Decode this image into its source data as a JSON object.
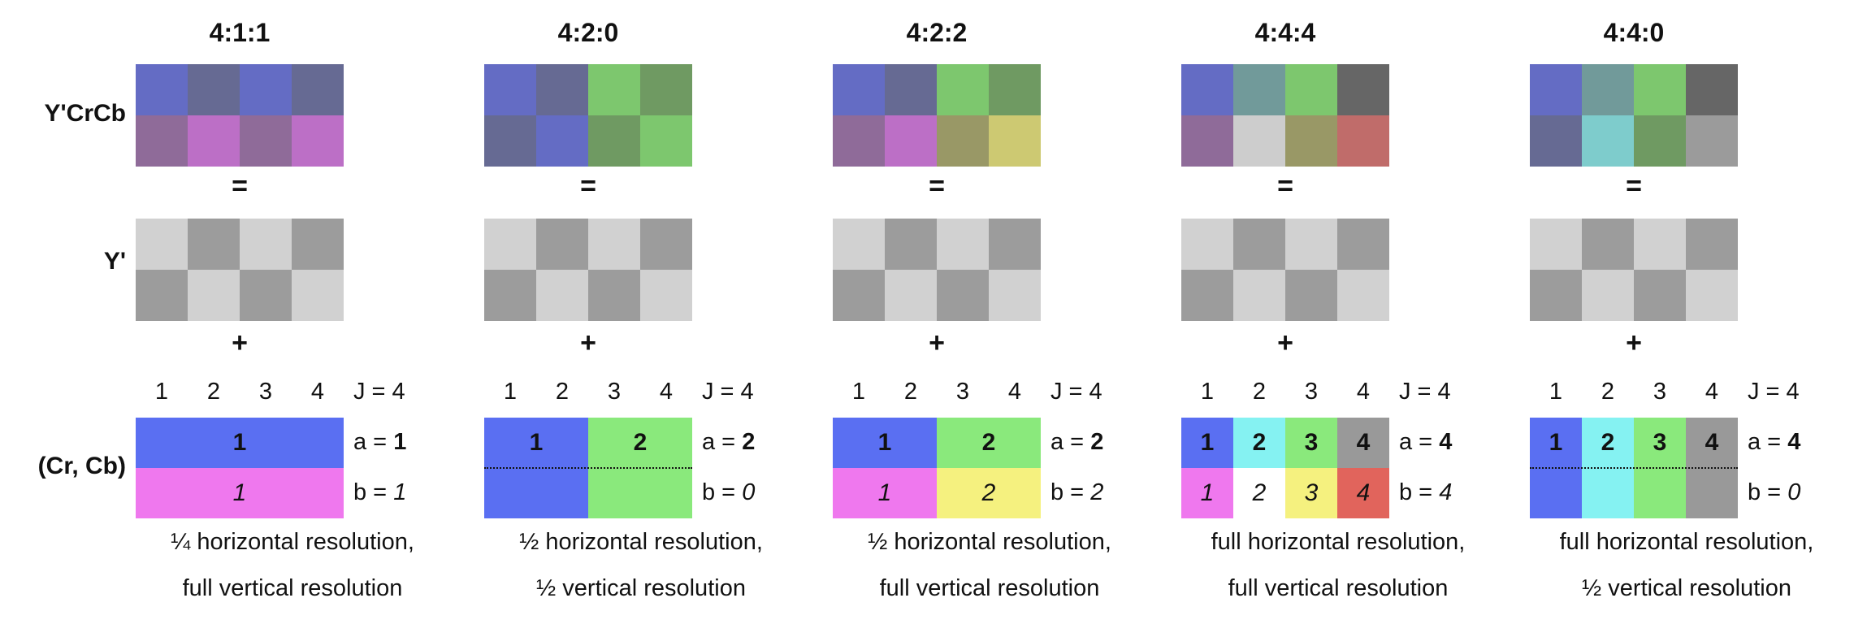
{
  "figure": {
    "row_labels": {
      "ycrcb": "Y'CrCb",
      "luma": "Y'",
      "chroma": "(Cr, Cb)"
    },
    "operators": {
      "equals": "=",
      "plus": "+"
    },
    "index_header": {
      "indices": [
        "1",
        "2",
        "3",
        "4"
      ],
      "j_label": "J = 4"
    },
    "a_prefix": "a = ",
    "b_prefix": "b = ",
    "luma_grid": [
      [
        "#d1d1d1",
        "#9c9c9c",
        "#d1d1d1",
        "#9c9c9c"
      ],
      [
        "#9c9c9c",
        "#d1d1d1",
        "#9c9c9c",
        "#d1d1d1"
      ]
    ]
  },
  "palette": {
    "chroma_blue": "#5a6ff2",
    "chroma_cyan": "#85f2f2",
    "chroma_green": "#8ae97c",
    "chroma_gray": "#999999",
    "chroma_magenta": "#ef78ee",
    "chroma_white": "#ffffff",
    "chroma_yellow": "#f5f17f",
    "chroma_red": "#e1645c",
    "luma_light": "#d1d1d1",
    "luma_dark": "#9c9c9c",
    "text": "#111111"
  },
  "columns": [
    {
      "title": "4:1:1",
      "ycrcb_grid": [
        [
          "#646cc4",
          "#666a93",
          "#646cc4",
          "#666a93"
        ],
        [
          "#8f6b99",
          "#bc6fc6",
          "#8f6b99",
          "#bc6fc6"
        ]
      ],
      "a_value": "1",
      "b_value": "1",
      "dotted_divider": false,
      "chroma_cells": [
        {
          "row": 0,
          "col": 0,
          "w": 4,
          "h": 1,
          "color": "#5a6ff2",
          "label": "1",
          "style": "bold"
        },
        {
          "row": 1,
          "col": 0,
          "w": 4,
          "h": 1,
          "color": "#ef78ee",
          "label": "1",
          "style": "italic"
        }
      ],
      "caption_line1": "¼ horizontal resolution,",
      "caption_line2": "full vertical resolution"
    },
    {
      "title": "4:2:0",
      "ycrcb_grid": [
        [
          "#646cc4",
          "#666a93",
          "#7dc76e",
          "#6f9a62"
        ],
        [
          "#666a93",
          "#646cc4",
          "#6f9a62",
          "#7dc76e"
        ]
      ],
      "a_value": "2",
      "b_value": "0",
      "dotted_divider": true,
      "chroma_cells": [
        {
          "row": 0,
          "col": 0,
          "w": 2,
          "h": 2,
          "color": "#5a6ff2",
          "label": "1",
          "style": "bold"
        },
        {
          "row": 0,
          "col": 2,
          "w": 2,
          "h": 2,
          "color": "#8ae97c",
          "label": "2",
          "style": "bold"
        }
      ],
      "caption_line1": "½ horizontal resolution,",
      "caption_line2": "½ vertical resolution"
    },
    {
      "title": "4:2:2",
      "ycrcb_grid": [
        [
          "#646cc4",
          "#666a93",
          "#7dc76e",
          "#6f9a62"
        ],
        [
          "#8f6b99",
          "#bc6fc6",
          "#999866",
          "#cdc972"
        ]
      ],
      "a_value": "2",
      "b_value": "2",
      "dotted_divider": false,
      "chroma_cells": [
        {
          "row": 0,
          "col": 0,
          "w": 2,
          "h": 1,
          "color": "#5a6ff2",
          "label": "1",
          "style": "bold"
        },
        {
          "row": 0,
          "col": 2,
          "w": 2,
          "h": 1,
          "color": "#8ae97c",
          "label": "2",
          "style": "bold"
        },
        {
          "row": 1,
          "col": 0,
          "w": 2,
          "h": 1,
          "color": "#ef78ee",
          "label": "1",
          "style": "italic"
        },
        {
          "row": 1,
          "col": 2,
          "w": 2,
          "h": 1,
          "color": "#f5f17f",
          "label": "2",
          "style": "italic"
        }
      ],
      "caption_line1": "½ horizontal resolution,",
      "caption_line2": "full vertical resolution"
    },
    {
      "title": "4:4:4",
      "ycrcb_grid": [
        [
          "#646cc4",
          "#719a9a",
          "#7dc76e",
          "#666666"
        ],
        [
          "#8f6b99",
          "#cdcdcd",
          "#999866",
          "#c06c6a"
        ]
      ],
      "a_value": "4",
      "b_value": "4",
      "dotted_divider": false,
      "chroma_cells": [
        {
          "row": 0,
          "col": 0,
          "w": 1,
          "h": 1,
          "color": "#5a6ff2",
          "label": "1",
          "style": "bold"
        },
        {
          "row": 0,
          "col": 1,
          "w": 1,
          "h": 1,
          "color": "#85f2f2",
          "label": "2",
          "style": "bold"
        },
        {
          "row": 0,
          "col": 2,
          "w": 1,
          "h": 1,
          "color": "#8ae97c",
          "label": "3",
          "style": "bold"
        },
        {
          "row": 0,
          "col": 3,
          "w": 1,
          "h": 1,
          "color": "#999999",
          "label": "4",
          "style": "bold"
        },
        {
          "row": 1,
          "col": 0,
          "w": 1,
          "h": 1,
          "color": "#ef78ee",
          "label": "1",
          "style": "italic"
        },
        {
          "row": 1,
          "col": 1,
          "w": 1,
          "h": 1,
          "color": "#ffffff",
          "label": "2",
          "style": "italic"
        },
        {
          "row": 1,
          "col": 2,
          "w": 1,
          "h": 1,
          "color": "#f5f17f",
          "label": "3",
          "style": "italic"
        },
        {
          "row": 1,
          "col": 3,
          "w": 1,
          "h": 1,
          "color": "#e1645c",
          "label": "4",
          "style": "italic"
        }
      ],
      "caption_line1": "full horizontal resolution,",
      "caption_line2": "full vertical resolution"
    },
    {
      "title": "4:4:0",
      "ycrcb_grid": [
        [
          "#646cc4",
          "#719a9a",
          "#7dc76e",
          "#666666"
        ],
        [
          "#666a93",
          "#7ecccc",
          "#6f9a62",
          "#9b9b9b"
        ]
      ],
      "a_value": "4",
      "b_value": "0",
      "dotted_divider": true,
      "chroma_cells": [
        {
          "row": 0,
          "col": 0,
          "w": 1,
          "h": 2,
          "color": "#5a6ff2",
          "label": "1",
          "style": "bold"
        },
        {
          "row": 0,
          "col": 1,
          "w": 1,
          "h": 2,
          "color": "#85f2f2",
          "label": "2",
          "style": "bold"
        },
        {
          "row": 0,
          "col": 2,
          "w": 1,
          "h": 2,
          "color": "#8ae97c",
          "label": "3",
          "style": "bold"
        },
        {
          "row": 0,
          "col": 3,
          "w": 1,
          "h": 2,
          "color": "#999999",
          "label": "4",
          "style": "bold"
        }
      ],
      "caption_line1": "full horizontal resolution,",
      "caption_line2": "½ vertical resolution"
    }
  ]
}
